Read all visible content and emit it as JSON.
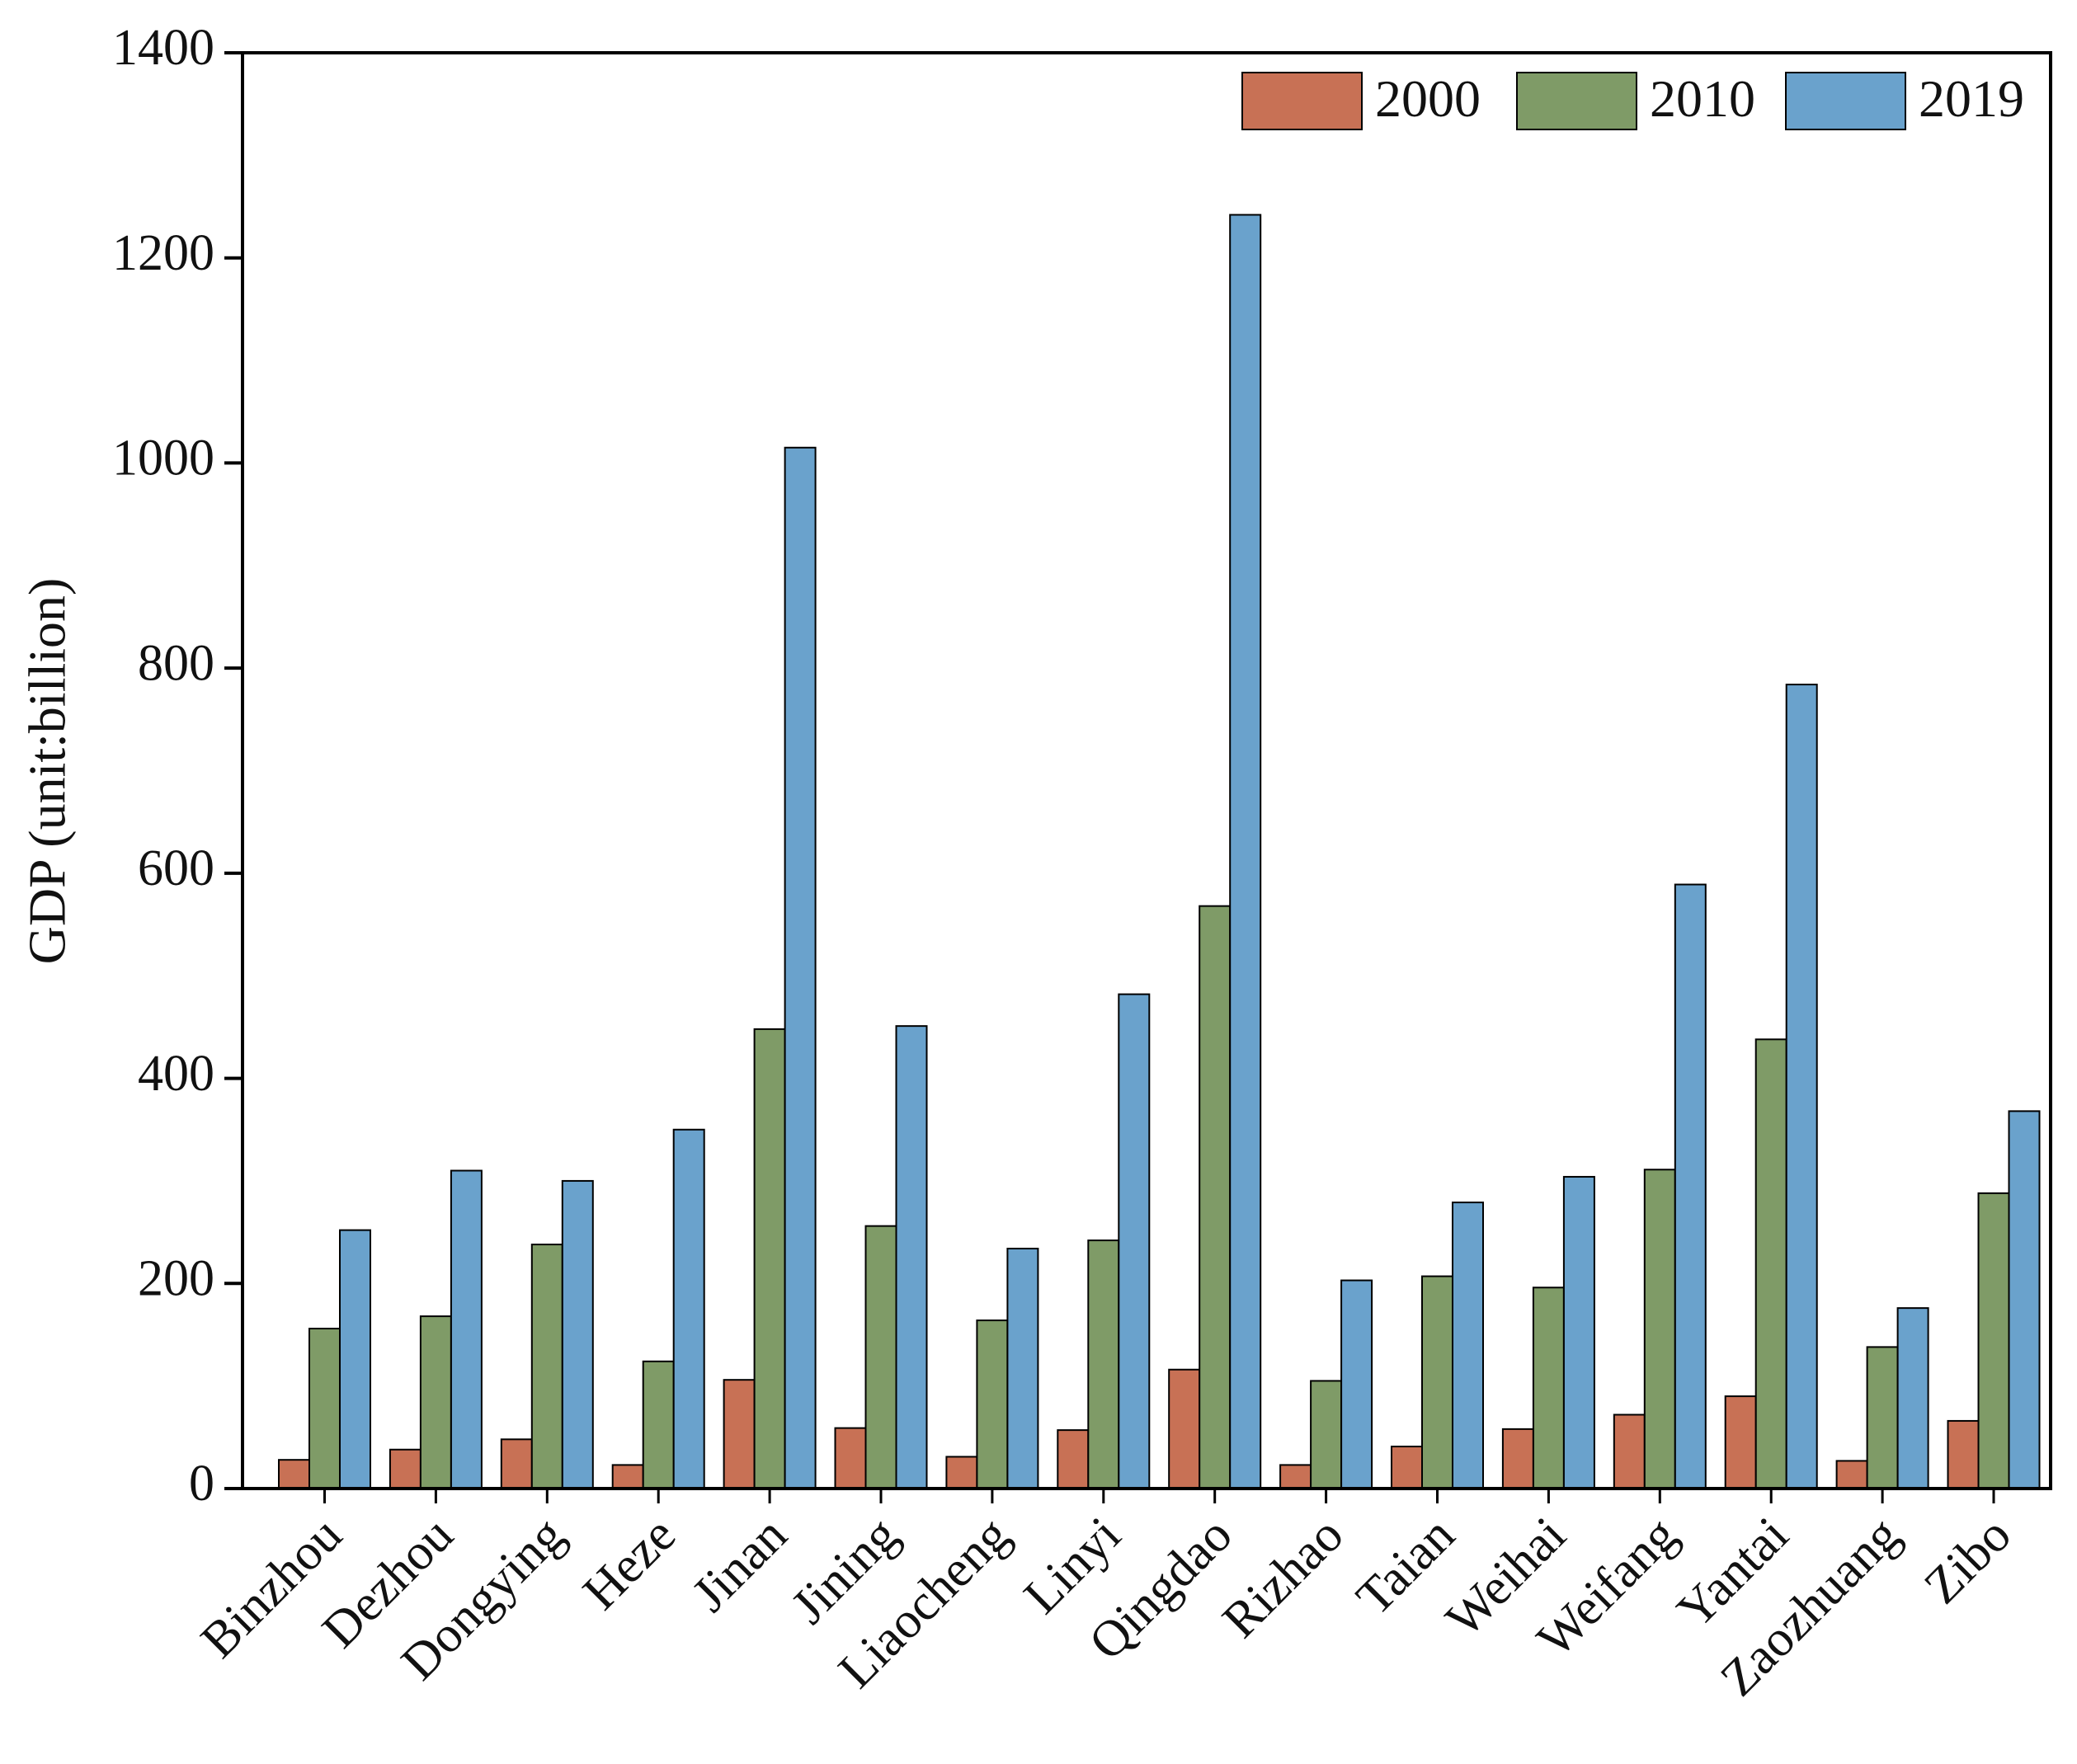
{
  "chart_data": {
    "type": "bar",
    "y_label": "GDP (unit:billion)",
    "categories": [
      "Binzhou",
      "Dezhou",
      "Dongying",
      "Heze",
      "Jinan",
      "Jining",
      "Liaocheng",
      "Linyi",
      "Qingdao",
      "Rizhao",
      "Taian",
      "Weihai",
      "Weifang",
      "Yantai",
      "Zaozhuang",
      "Zibo"
    ],
    "series": [
      {
        "name": "2000",
        "color": "#c87155",
        "values": [
          28,
          38,
          48,
          23,
          106,
          59,
          31,
          57,
          116,
          23,
          41,
          58,
          72,
          90,
          27,
          66
        ]
      },
      {
        "name": "2010",
        "color": "#7f9b67",
        "values": [
          156,
          168,
          238,
          124,
          448,
          256,
          164,
          242,
          568,
          105,
          207,
          196,
          311,
          438,
          138,
          288
        ]
      },
      {
        "name": "2019",
        "color": "#6aa2cc",
        "values": [
          252,
          310,
          300,
          350,
          1015,
          451,
          234,
          482,
          1242,
          203,
          279,
          304,
          589,
          784,
          176,
          368
        ]
      }
    ],
    "ylim": [
      0,
      1400
    ],
    "yticks": [
      0,
      200,
      400,
      600,
      800,
      1000,
      1200,
      1400
    ],
    "grid": false,
    "legend": "top-right"
  }
}
